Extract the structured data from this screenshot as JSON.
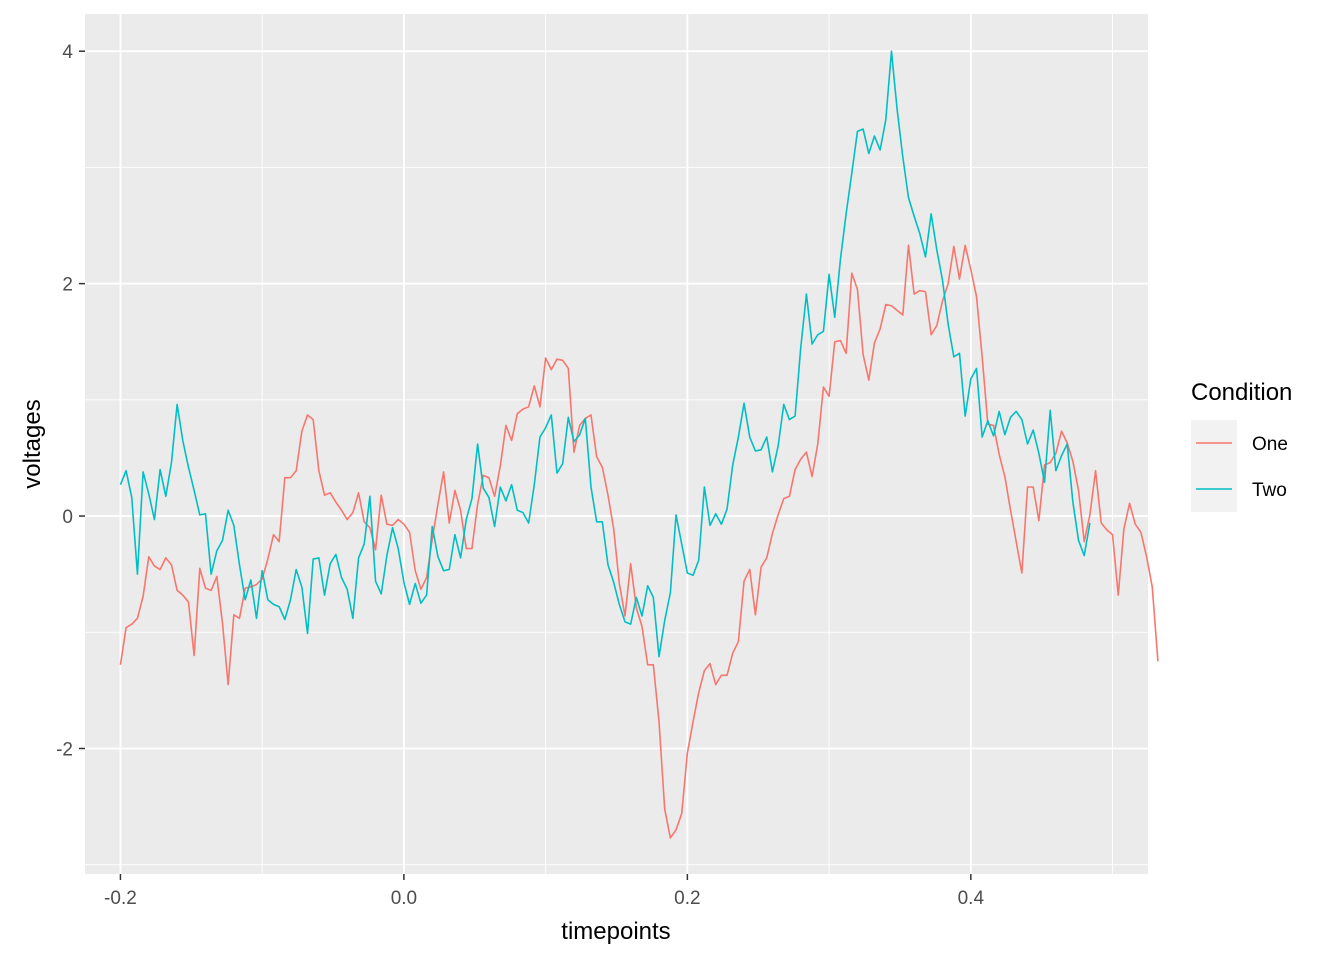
{
  "chart_data": {
    "type": "line",
    "xlabel": "timepoints",
    "ylabel": "voltages",
    "xlim": [
      -0.225,
      0.525
    ],
    "ylim": [
      -3.08,
      4.32
    ],
    "x_ticks": [
      -0.2,
      0.0,
      0.2,
      0.4
    ],
    "x_tick_labels": [
      "-0.2",
      "0.0",
      "0.2",
      "0.4"
    ],
    "y_ticks": [
      -2,
      0,
      2,
      4
    ],
    "y_tick_labels": [
      "-2",
      "0",
      "2",
      "4"
    ],
    "grid": true,
    "legend": {
      "title": "Condition",
      "position": "right"
    },
    "x_start": -0.2,
    "x_step": 0.004,
    "series": [
      {
        "name": "One",
        "color": "#F8766D",
        "values": [
          -1.28,
          -0.96,
          -0.93,
          -0.88,
          -0.69,
          -0.35,
          -0.43,
          -0.46,
          -0.36,
          -0.42,
          -0.64,
          -0.68,
          -0.74,
          -1.2,
          -0.45,
          -0.62,
          -0.64,
          -0.52,
          -0.92,
          -1.45,
          -0.85,
          -0.88,
          -0.62,
          -0.61,
          -0.59,
          -0.54,
          -0.37,
          -0.16,
          -0.22,
          0.33,
          0.33,
          0.39,
          0.73,
          0.87,
          0.83,
          0.39,
          0.18,
          0.2,
          0.12,
          0.05,
          -0.03,
          0.03,
          0.2,
          -0.05,
          -0.1,
          -0.29,
          0.18,
          -0.07,
          -0.08,
          -0.03,
          -0.07,
          -0.14,
          -0.47,
          -0.63,
          -0.53,
          -0.2,
          0.1,
          0.38,
          -0.06,
          0.22,
          0.05,
          -0.28,
          -0.28,
          0.1,
          0.35,
          0.33,
          0.17,
          0.43,
          0.78,
          0.65,
          0.88,
          0.92,
          0.94,
          1.12,
          0.94,
          1.36,
          1.26,
          1.35,
          1.34,
          1.27,
          0.55,
          0.78,
          0.84,
          0.87,
          0.51,
          0.42,
          0.18,
          -0.11,
          -0.58,
          -0.86,
          -0.41,
          -0.79,
          -0.95,
          -1.28,
          -1.28,
          -1.77,
          -2.52,
          -2.77,
          -2.7,
          -2.56,
          -2.04,
          -1.77,
          -1.52,
          -1.33,
          -1.27,
          -1.45,
          -1.37,
          -1.37,
          -1.18,
          -1.08,
          -0.56,
          -0.46,
          -0.85,
          -0.44,
          -0.36,
          -0.15,
          0.01,
          0.15,
          0.17,
          0.4,
          0.49,
          0.55,
          0.34,
          0.62,
          1.11,
          1.03,
          1.5,
          1.51,
          1.4,
          2.09,
          1.95,
          1.39,
          1.17,
          1.49,
          1.61,
          1.82,
          1.81,
          1.77,
          1.73,
          2.33,
          1.91,
          1.94,
          1.93,
          1.56,
          1.64,
          1.85,
          2,
          2.32,
          2.04,
          2.33,
          2.12,
          1.89,
          1.37,
          0.79,
          0.78,
          0.53,
          0.34,
          0.05,
          -0.22,
          -0.49,
          0.25,
          0.25,
          -0.04,
          0.44,
          0.46,
          0.54,
          0.73,
          0.63,
          0.47,
          0.22,
          -0.22,
          0.01,
          0.39,
          -0.06,
          -0.12,
          -0.16,
          -0.68,
          -0.11,
          0.11,
          -0.07,
          -0.14,
          -0.35,
          -0.61,
          -1.25
        ]
      },
      {
        "name": "Two",
        "color": "#00BFC4",
        "values": [
          0.27,
          0.39,
          0.16,
          -0.5,
          0.38,
          0.19,
          -0.03,
          0.4,
          0.17,
          0.46,
          0.96,
          0.65,
          0.42,
          0.22,
          0.01,
          0.02,
          -0.5,
          -0.3,
          -0.21,
          0.05,
          -0.08,
          -0.42,
          -0.72,
          -0.55,
          -0.88,
          -0.47,
          -0.72,
          -0.76,
          -0.78,
          -0.89,
          -0.72,
          -0.46,
          -0.61,
          -1.01,
          -0.37,
          -0.36,
          -0.68,
          -0.41,
          -0.33,
          -0.53,
          -0.63,
          -0.88,
          -0.36,
          -0.24,
          0.17,
          -0.56,
          -0.67,
          -0.34,
          -0.1,
          -0.28,
          -0.57,
          -0.76,
          -0.58,
          -0.75,
          -0.68,
          -0.09,
          -0.35,
          -0.47,
          -0.46,
          -0.16,
          -0.36,
          -0.03,
          0.15,
          0.62,
          0.24,
          0.16,
          -0.09,
          0.25,
          0.13,
          0.27,
          0.05,
          0.03,
          -0.06,
          0.27,
          0.68,
          0.76,
          0.87,
          0.37,
          0.45,
          0.85,
          0.64,
          0.7,
          0.84,
          0.25,
          -0.05,
          -0.05,
          -0.42,
          -0.57,
          -0.76,
          -0.91,
          -0.93,
          -0.7,
          -0.86,
          -0.6,
          -0.7,
          -1.21,
          -0.9,
          -0.66,
          0.01,
          -0.24,
          -0.49,
          -0.51,
          -0.38,
          0.25,
          -0.08,
          0.02,
          -0.07,
          0.06,
          0.44,
          0.68,
          0.97,
          0.68,
          0.56,
          0.57,
          0.68,
          0.38,
          0.6,
          0.96,
          0.83,
          0.86,
          1.45,
          1.91,
          1.48,
          1.56,
          1.59,
          2.08,
          1.71,
          2.21,
          2.6,
          2.95,
          3.31,
          3.33,
          3.12,
          3.27,
          3.15,
          3.41,
          4,
          3.5,
          3.09,
          2.74,
          2.58,
          2.43,
          2.23,
          2.6,
          2.29,
          2.03,
          1.65,
          1.37,
          1.4,
          0.86,
          1.18,
          1.27,
          0.68,
          0.82,
          0.69,
          0.9,
          0.7,
          0.85,
          0.9,
          0.83,
          0.62,
          0.74,
          0.54,
          0.29,
          0.91,
          0.39,
          0.52,
          0.62,
          0.12,
          -0.21,
          -0.34,
          -0.06
        ]
      }
    ]
  }
}
